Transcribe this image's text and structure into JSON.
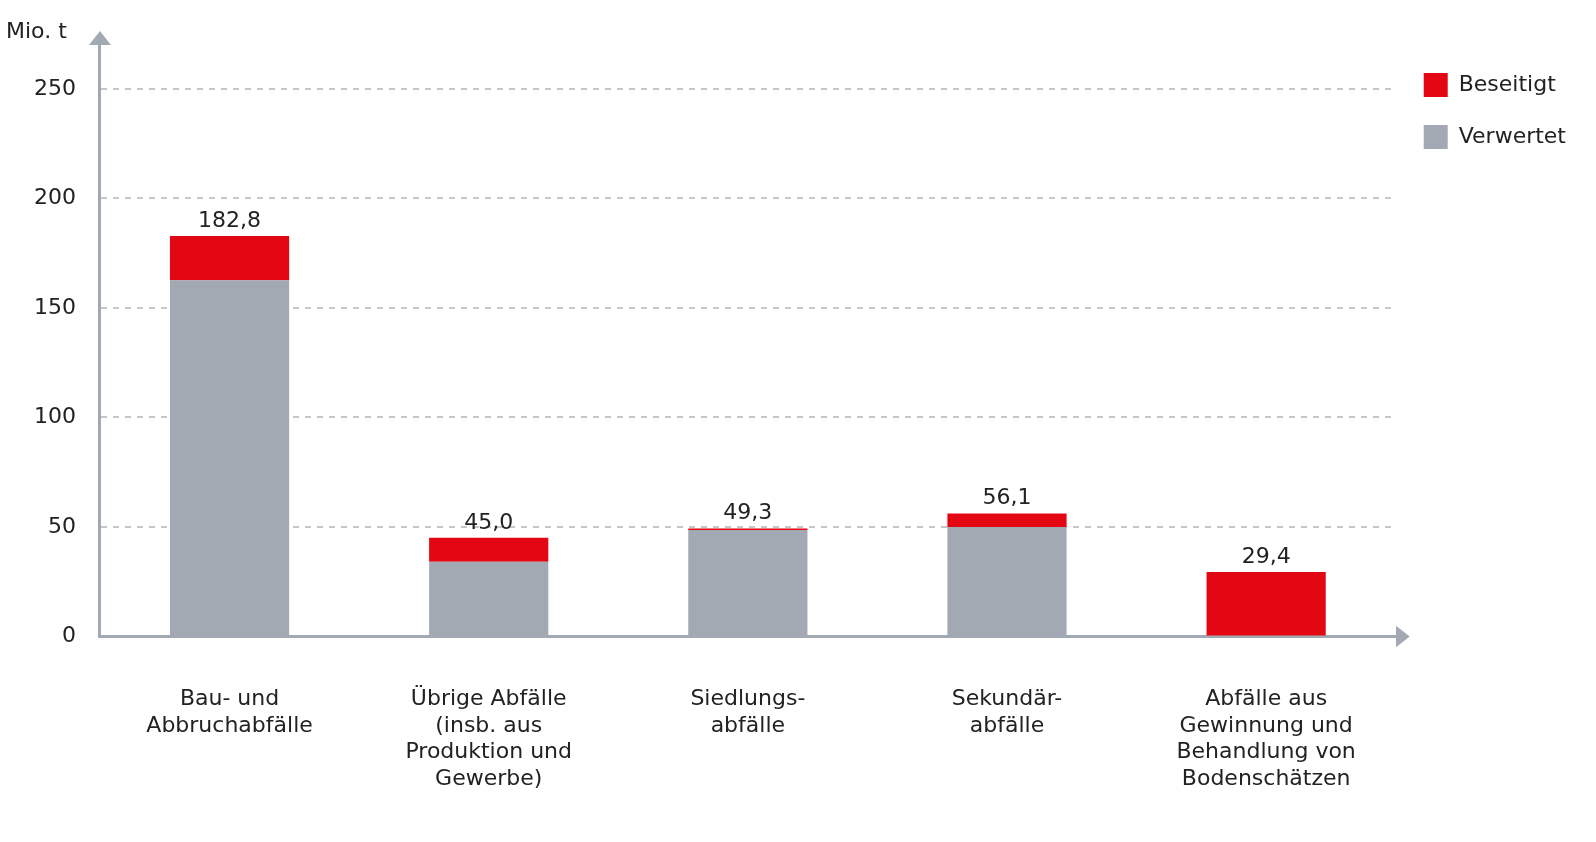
{
  "chart_data": {
    "type": "bar",
    "stacked": true,
    "ylabel": "Mio. t",
    "categories": [
      "Bau- und\nAbbruchabfälle",
      "Übrige Abfälle\n(insb. aus\nProduktion und\nGewerbe)",
      "Siedlungs-\nabfälle",
      "Sekundär-\nabfälle",
      "Abfälle aus\nGewinnung und\nBehandlung von\nBodenschätzen"
    ],
    "series": [
      {
        "name": "Verwertet",
        "color": "#a3a9b2",
        "values": [
          162.6,
          34.1,
          48.6,
          50.0,
          0
        ]
      },
      {
        "name": "Beseitigt",
        "color": "#e30613",
        "values": [
          20.2,
          10.9,
          0.7,
          6.1,
          29.4
        ]
      }
    ],
    "totals": [
      "182,8",
      "45,0",
      "49,3",
      "56,1",
      "29,4"
    ],
    "ylim": [
      0,
      270
    ],
    "yticks": [
      0,
      50,
      100,
      150,
      200,
      250
    ],
    "grid": "y",
    "legend": "top right"
  }
}
